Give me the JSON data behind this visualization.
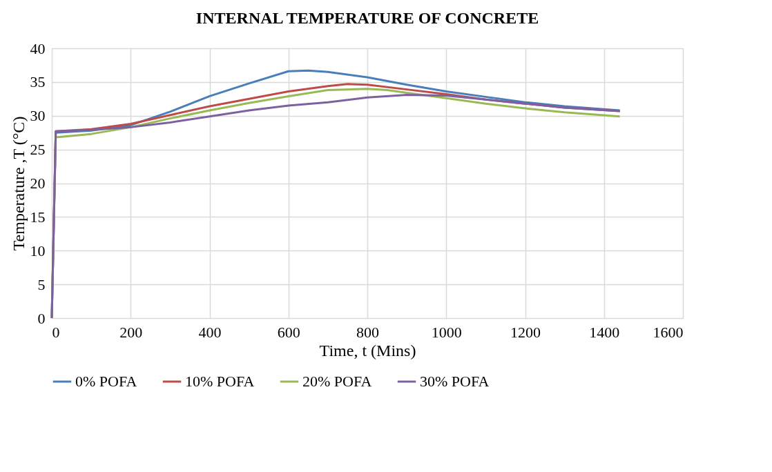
{
  "chart_data": {
    "type": "line",
    "title": "INTERNAL TEMPERATURE OF CONCRETE",
    "xlabel": "Time, t (Mins)",
    "ylabel": "Temperature ,T (°C)",
    "xlim": [
      0,
      1600
    ],
    "xticks": [
      0,
      200,
      400,
      600,
      800,
      1000,
      1200,
      1400,
      1600
    ],
    "ylim": [
      0,
      40
    ],
    "yticks": [
      0,
      5,
      10,
      15,
      20,
      25,
      30,
      35,
      40
    ],
    "grid": true,
    "legend": "bottom",
    "marker": "none",
    "line_style": "solid",
    "series": [
      {
        "name": "0% POFA",
        "color": "#4a7ebb",
        "x": [
          0,
          10,
          100,
          200,
          300,
          400,
          500,
          600,
          650,
          700,
          800,
          900,
          1000,
          1100,
          1200,
          1300,
          1440
        ],
        "values": [
          0,
          27.5,
          27.8,
          28.6,
          30.6,
          32.9,
          34.8,
          36.6,
          36.7,
          36.5,
          35.7,
          34.6,
          33.6,
          32.8,
          32.0,
          31.4,
          30.8
        ]
      },
      {
        "name": "10% POFA",
        "color": "#be4b48",
        "x": [
          0,
          10,
          100,
          200,
          300,
          400,
          500,
          600,
          700,
          750,
          800,
          900,
          1000,
          1100,
          1200,
          1300,
          1440
        ],
        "values": [
          0,
          27.7,
          28.0,
          28.8,
          30.1,
          31.4,
          32.5,
          33.6,
          34.4,
          34.7,
          34.6,
          33.9,
          33.2,
          32.4,
          31.8,
          31.2,
          30.7
        ]
      },
      {
        "name": "20% POFA",
        "color": "#98b954",
        "x": [
          0,
          10,
          100,
          200,
          300,
          400,
          500,
          600,
          700,
          800,
          850,
          900,
          1000,
          1100,
          1200,
          1300,
          1440
        ],
        "values": [
          0,
          26.8,
          27.3,
          28.3,
          29.6,
          30.8,
          31.9,
          32.9,
          33.8,
          34.0,
          33.8,
          33.4,
          32.6,
          31.8,
          31.1,
          30.5,
          29.9
        ]
      },
      {
        "name": "30% POFA",
        "color": "#7d60a0",
        "x": [
          0,
          10,
          100,
          200,
          300,
          400,
          500,
          600,
          700,
          800,
          900,
          1000,
          1100,
          1200,
          1300,
          1440
        ],
        "values": [
          0,
          27.7,
          27.9,
          28.3,
          29.0,
          29.9,
          30.8,
          31.5,
          32.0,
          32.7,
          33.1,
          33.0,
          32.4,
          31.8,
          31.2,
          30.7
        ]
      }
    ]
  }
}
